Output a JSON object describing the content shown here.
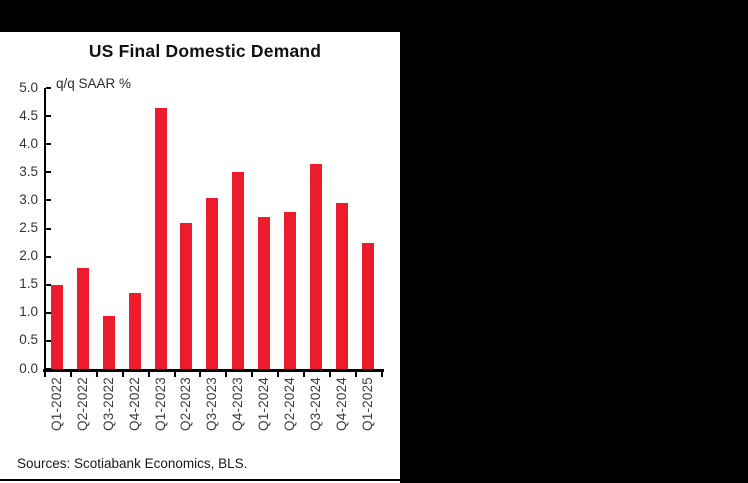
{
  "chart": {
    "source_note": "Sources: Scotiabank Economics, BLS."
  },
  "colors": {
    "bar": "#EC1B2D",
    "surround": "#000000",
    "axis": "#000000",
    "panel_bg": "#FFFFFF",
    "tick_label": "#3D3D3D"
  },
  "chart_data": {
    "type": "bar",
    "title": "US Final Domestic Demand",
    "xlabel": "",
    "ylabel": "q/q SAAR %",
    "categories": [
      "Q1-2022",
      "Q2-2022",
      "Q3-2022",
      "Q4-2022",
      "Q1-2023",
      "Q2-2023",
      "Q3-2023",
      "Q4-2023",
      "Q1-2024",
      "Q2-2024",
      "Q3-2024",
      "Q4-2024",
      "Q1-2025"
    ],
    "values": [
      1.5,
      1.8,
      0.95,
      1.35,
      4.65,
      2.6,
      3.05,
      3.5,
      2.7,
      2.8,
      3.65,
      2.95,
      2.25
    ],
    "ylim": [
      0,
      5
    ],
    "ytick_step": 0.5,
    "yticks": [
      "5.0",
      "4.5",
      "4.0",
      "3.5",
      "3.0",
      "2.5",
      "2.0",
      "1.5",
      "1.0",
      "0.5",
      "0.0"
    ],
    "grid": false,
    "legend": "none",
    "bar_color": "#EC1B2D"
  }
}
